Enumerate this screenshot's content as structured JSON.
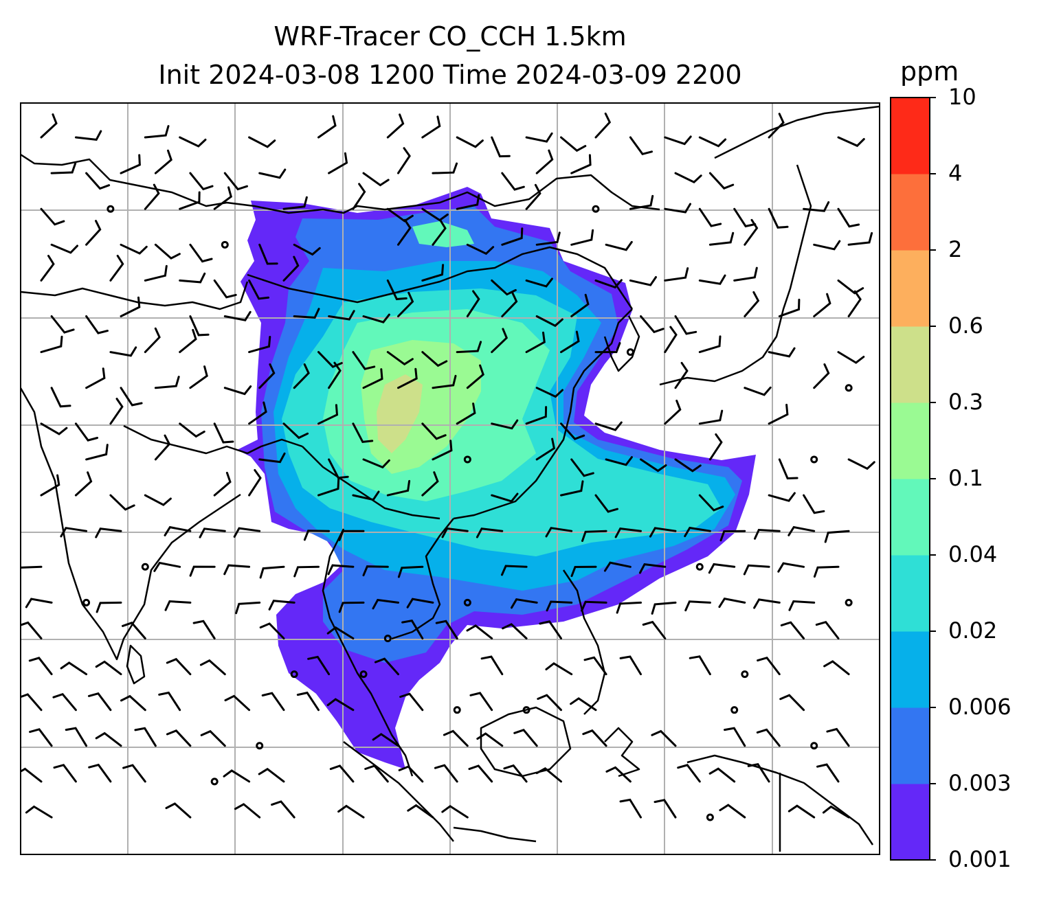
{
  "title": {
    "line1": "WRF-Tracer CO_CCH 1.5km",
    "line2": "Init 2024-03-08 1200 Time 2024-03-09 2200"
  },
  "colorbar": {
    "unit": "ppm",
    "levels": [
      "0.001",
      "0.003",
      "0.006",
      "0.02",
      "0.04",
      "0.1",
      "0.3",
      "0.6",
      "2",
      "4",
      "10"
    ],
    "colors": [
      "#6428f8",
      "#3376f2",
      "#06b0ea",
      "#2fdfd6",
      "#62f8ba",
      "#9afa93",
      "#cde08a",
      "#fdaf5d",
      "#fd6f3b",
      "#fe2a18"
    ]
  },
  "map": {
    "gridlines": true,
    "grid_color": "#b0b0b0",
    "layers": [
      "coastlines",
      "country-borders",
      "tracer-concentration",
      "wind-barbs"
    ]
  }
}
